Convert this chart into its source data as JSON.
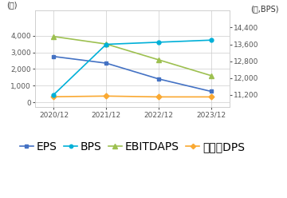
{
  "x_labels": [
    "2020/12",
    "2021/12",
    "2022/12",
    "2023/12"
  ],
  "x_values": [
    0,
    1,
    2,
    3
  ],
  "EPS": [
    2750,
    2350,
    1400,
    650
  ],
  "BPS": [
    11200,
    13600,
    13700,
    13800
  ],
  "EBITDAPS": [
    3950,
    3500,
    2550,
    1600
  ],
  "DPS": [
    330,
    370,
    320,
    320
  ],
  "left_ylim": [
    -300,
    5500
  ],
  "right_ylim": [
    10600,
    15200
  ],
  "left_yticks": [
    0,
    1000,
    2000,
    3000,
    4000
  ],
  "right_yticks": [
    11200,
    12000,
    12800,
    13600,
    14400
  ],
  "colors": {
    "EPS": "#4472c4",
    "BPS": "#00b0d8",
    "EBITDAPS": "#9dc050",
    "DPS": "#faa932"
  },
  "left_ylabel": "(원)",
  "right_ylabel": "(원,BPS)",
  "bg_color": "#ffffff",
  "grid_color": "#cccccc",
  "legend_labels": [
    "EPS",
    "BPS",
    "EBITDAPS",
    "보통주DPS"
  ]
}
